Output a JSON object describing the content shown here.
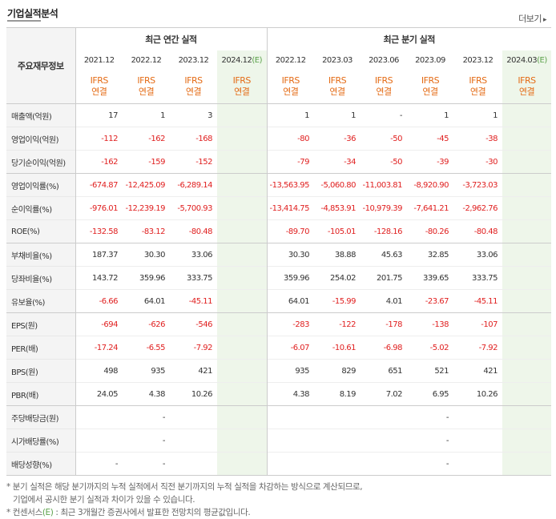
{
  "header": {
    "title": "기업실적분석",
    "more_label": "더보기",
    "more_arrow": "▸"
  },
  "table": {
    "corner_label": "주요재무정보",
    "annual_group": "최근 연간 실적",
    "quarter_group": "최근 분기 실적",
    "annual_dates": [
      {
        "label": "2021.12",
        "est": false
      },
      {
        "label": "2022.12",
        "est": false
      },
      {
        "label": "2023.12",
        "est": false
      },
      {
        "label": "2024.12",
        "est": true
      }
    ],
    "quarter_dates": [
      {
        "label": "2022.12",
        "est": false
      },
      {
        "label": "2023.03",
        "est": false
      },
      {
        "label": "2023.06",
        "est": false
      },
      {
        "label": "2023.09",
        "est": false
      },
      {
        "label": "2023.12",
        "est": false
      },
      {
        "label": "2024.03",
        "est": true
      }
    ],
    "est_suffix": "(E)",
    "ifrs_line1": "IFRS",
    "ifrs_line2": "연결",
    "rows": [
      {
        "label": "매출액(억원)",
        "group_start": true,
        "annual": [
          "17",
          "1",
          "3",
          ""
        ],
        "quarter": [
          "1",
          "1",
          "-",
          "1",
          "1",
          ""
        ]
      },
      {
        "label": "영업이익(억원)",
        "annual": [
          "-112",
          "-162",
          "-168",
          ""
        ],
        "quarter": [
          "-80",
          "-36",
          "-50",
          "-45",
          "-38",
          ""
        ]
      },
      {
        "label": "당기순이익(억원)",
        "annual": [
          "-162",
          "-159",
          "-152",
          ""
        ],
        "quarter": [
          "-79",
          "-34",
          "-50",
          "-39",
          "-30",
          ""
        ]
      },
      {
        "label": "영업이익률(%)",
        "group_start": true,
        "annual": [
          "-674.87",
          "-12,425.09",
          "-6,289.14",
          ""
        ],
        "quarter": [
          "-13,563.95",
          "-5,060.80",
          "-11,003.81",
          "-8,920.90",
          "-3,723.03",
          ""
        ]
      },
      {
        "label": "순이익률(%)",
        "annual": [
          "-976.01",
          "-12,239.19",
          "-5,700.93",
          ""
        ],
        "quarter": [
          "-13,414.75",
          "-4,853.91",
          "-10,979.39",
          "-7,641.21",
          "-2,962.76",
          ""
        ]
      },
      {
        "label": "ROE(%)",
        "annual": [
          "-132.58",
          "-83.12",
          "-80.48",
          ""
        ],
        "quarter": [
          "-89.70",
          "-105.01",
          "-128.16",
          "-80.26",
          "-80.48",
          ""
        ]
      },
      {
        "label": "부채비율(%)",
        "group_start": true,
        "annual": [
          "187.37",
          "30.30",
          "33.06",
          ""
        ],
        "quarter": [
          "30.30",
          "38.88",
          "45.63",
          "32.85",
          "33.06",
          ""
        ]
      },
      {
        "label": "당좌비율(%)",
        "annual": [
          "143.72",
          "359.96",
          "333.75",
          ""
        ],
        "quarter": [
          "359.96",
          "254.02",
          "201.75",
          "339.65",
          "333.75",
          ""
        ]
      },
      {
        "label": "유보율(%)",
        "annual": [
          "-6.66",
          "64.01",
          "-45.11",
          ""
        ],
        "quarter": [
          "64.01",
          "-15.99",
          "4.01",
          "-23.67",
          "-45.11",
          ""
        ]
      },
      {
        "label": "EPS(원)",
        "group_start": true,
        "annual": [
          "-694",
          "-626",
          "-546",
          ""
        ],
        "quarter": [
          "-283",
          "-122",
          "-178",
          "-138",
          "-107",
          ""
        ]
      },
      {
        "label": "PER(배)",
        "annual": [
          "-17.24",
          "-6.55",
          "-7.92",
          ""
        ],
        "quarter": [
          "-6.07",
          "-10.61",
          "-6.98",
          "-5.02",
          "-7.92",
          ""
        ]
      },
      {
        "label": "BPS(원)",
        "annual": [
          "498",
          "935",
          "421",
          ""
        ],
        "quarter": [
          "935",
          "829",
          "651",
          "521",
          "421",
          ""
        ]
      },
      {
        "label": "PBR(배)",
        "annual": [
          "24.05",
          "4.38",
          "10.26",
          ""
        ],
        "quarter": [
          "4.38",
          "8.19",
          "7.02",
          "6.95",
          "10.26",
          ""
        ]
      },
      {
        "label": "주당배당금(원)",
        "group_start": true,
        "annual": [
          "",
          "-",
          "",
          ""
        ],
        "quarter": [
          "",
          "",
          "",
          "-",
          "",
          ""
        ]
      },
      {
        "label": "시가배당률(%)",
        "annual": [
          "",
          "-",
          "",
          ""
        ],
        "quarter": [
          "",
          "",
          "",
          "-",
          "",
          ""
        ]
      },
      {
        "label": "배당성향(%)",
        "annual": [
          "-",
          "-",
          "",
          ""
        ],
        "quarter": [
          "",
          "",
          "",
          "-",
          "",
          ""
        ]
      }
    ]
  },
  "notes": {
    "line1": "* 분기 실적은 해당 분기까지의 누적 실적에서 직전 분기까지의 누적 실적을 차감하는 방식으로 계산되므로,",
    "line2": "기업에서 공시한 분기 실적과 차이가 있을 수 있습니다.",
    "line3_prefix": "* 컨센서스",
    "line3_em": "(E)",
    "line3_suffix": " : 최근 3개월간 증권사에서 발표한 전망치의 평균값입니다."
  }
}
